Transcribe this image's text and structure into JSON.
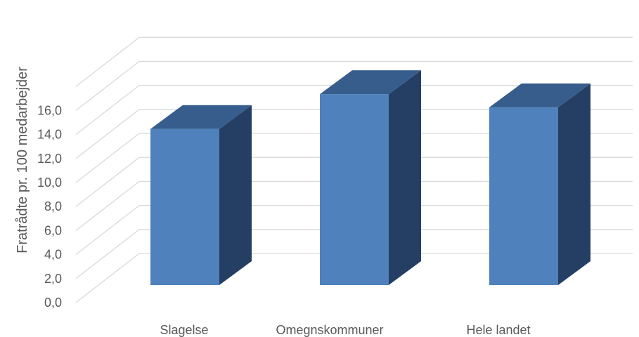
{
  "chart_data": {
    "type": "bar",
    "title": "",
    "xlabel": "",
    "ylabel": "Fratrådte pr. 100 medarbejder",
    "categories": [
      "Slagelse",
      "Omegnskommuner",
      "Hele landet"
    ],
    "values": [
      13.0,
      15.9,
      14.8
    ],
    "ylim": [
      0,
      16
    ],
    "yticks": [
      "0,0",
      "2,0",
      "4,0",
      "6,0",
      "8,0",
      "10,0",
      "12,0",
      "14,0",
      "16,0"
    ],
    "grid": true,
    "legend": "none",
    "style": "3d-column",
    "colors": {
      "front": "#4f81bd",
      "side": "#243f63",
      "top": "#375d8c",
      "grid": "#d9d9d9",
      "text": "#595959"
    }
  }
}
